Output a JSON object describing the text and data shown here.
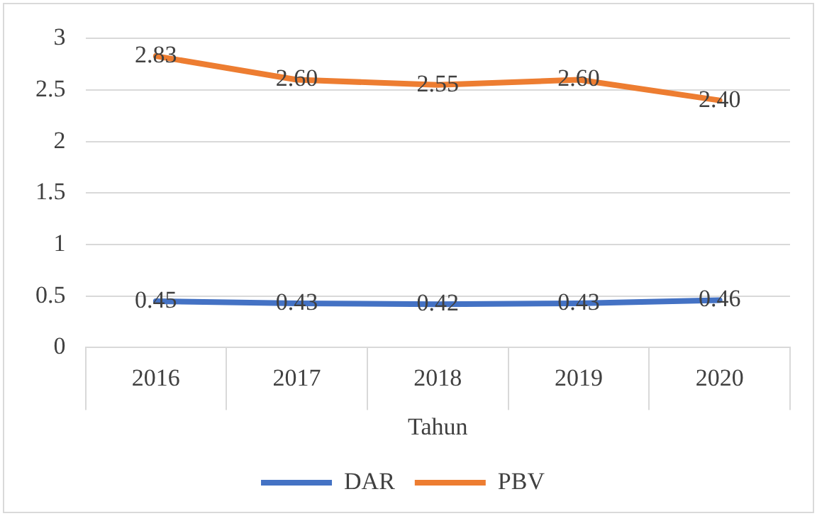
{
  "chart_data": {
    "type": "line",
    "xlabel": "Tahun",
    "categories": [
      "2016",
      "2017",
      "2018",
      "2019",
      "2020"
    ],
    "series": [
      {
        "name": "DAR",
        "color": "#4472c4",
        "values": [
          0.45,
          0.43,
          0.42,
          0.43,
          0.46
        ],
        "value_labels": [
          "0.45",
          "0.43",
          "0.42",
          "0.43",
          "0.46"
        ]
      },
      {
        "name": "PBV",
        "color": "#ed7d31",
        "values": [
          2.83,
          2.6,
          2.55,
          2.6,
          2.4
        ],
        "value_labels": [
          "2.83",
          "2.60",
          "2.55",
          "2.60",
          "2.40"
        ]
      }
    ],
    "ylim": [
      0,
      3
    ],
    "yticks": [
      0,
      0.5,
      1,
      1.5,
      2,
      2.5,
      3
    ],
    "grid": "y",
    "legend": "bottom"
  }
}
